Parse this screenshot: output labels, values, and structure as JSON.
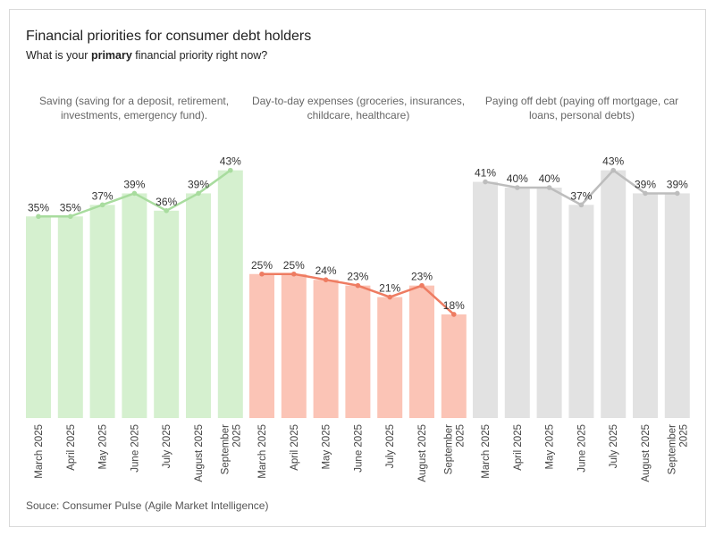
{
  "header": {
    "title": "Financial priorities for consumer debt holders",
    "subtitle_pre": "What is your ",
    "subtitle_bold": "primary",
    "subtitle_post": " financial priority right now?"
  },
  "footer": {
    "source": "Souce: Consumer Pulse (Agile Market Intelligence)"
  },
  "colors": {
    "saving_bar": "#d5f0cf",
    "saving_line": "#a8dc9e",
    "expenses_bar": "#fbc4b6",
    "expenses_line": "#ee7c62",
    "debt_bar": "#e2e2e2",
    "debt_line": "#bdbdbd"
  },
  "chart_data": {
    "type": "bar",
    "categories": [
      "March 2025",
      "April 2025",
      "May 2025",
      "June 2025",
      "July 2025",
      "August 2025",
      "September 2025"
    ],
    "ylim": [
      0,
      50
    ],
    "value_suffix": "%",
    "series": [
      {
        "name": "Saving (saving for a deposit, retirement, investments, emergency fund).",
        "name_lines": [
          "Saving (saving for a deposit, retirement,",
          "investments, emergency fund)."
        ],
        "values": [
          35,
          35,
          37,
          39,
          36,
          39,
          43
        ],
        "bar_color": "#d5f0cf",
        "line_color": "#a8dc9e"
      },
      {
        "name": "Day-to-day expenses (groceries, insurances, childcare, healthcare)",
        "name_lines": [
          "Day-to-day expenses (groceries, insurances,",
          "childcare, healthcare)"
        ],
        "values": [
          25,
          25,
          24,
          23,
          21,
          23,
          18
        ],
        "bar_color": "#fbc4b6",
        "line_color": "#ee7c62"
      },
      {
        "name": "Paying off debt (paying off mortgage, car loans, personal debts)",
        "name_lines": [
          "Paying off debt (paying off mortgage, car",
          "loans, personal debts)"
        ],
        "values": [
          41,
          40,
          40,
          37,
          43,
          39,
          39
        ],
        "bar_color": "#e2e2e2",
        "line_color": "#bdbdbd"
      }
    ],
    "category_labels": [
      [
        "March 2025"
      ],
      [
        "April 2025"
      ],
      [
        "May 2025"
      ],
      [
        "June 2025"
      ],
      [
        "July 2025"
      ],
      [
        "August 2025"
      ],
      [
        "September",
        "2025"
      ]
    ]
  }
}
